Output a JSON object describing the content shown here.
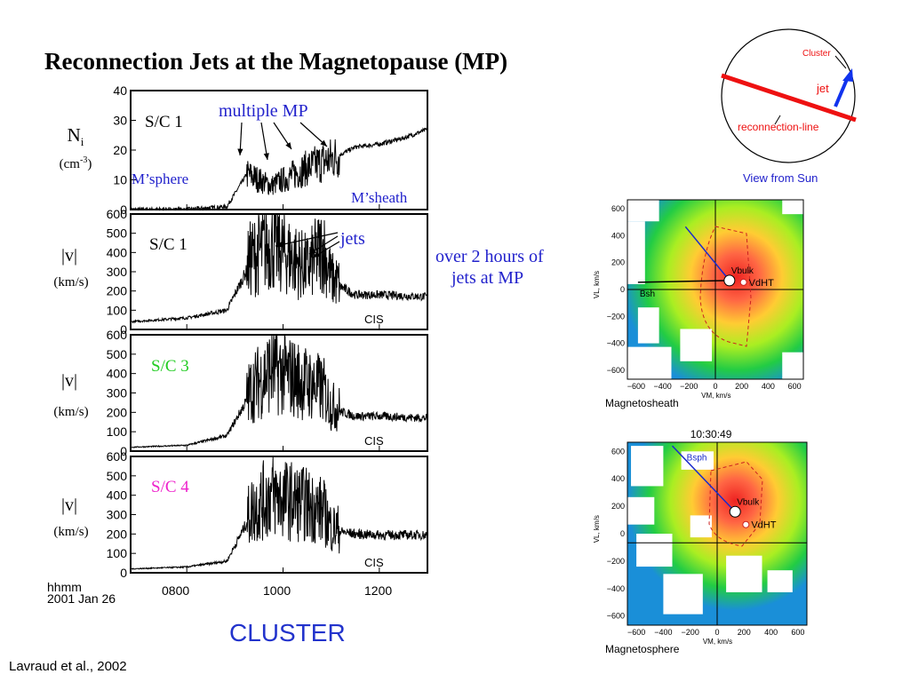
{
  "slide": {
    "title": "Reconnection Jets at the Magnetopause (MP)",
    "mission": "CLUSTER",
    "citation": "Lavraud et al., 2002",
    "jets_note_line1": "over 2 hours of",
    "jets_note_line2": "jets at MP",
    "colors": {
      "annotation_blue": "#2222cc",
      "sc3_green": "#22cc22",
      "sc4_magenta": "#ee22cc",
      "reconnection_red": "#ee1111"
    }
  },
  "timeseries": {
    "time_axis": {
      "ticks": [
        "0800",
        "1000",
        "1200"
      ],
      "left_label": "hhmm",
      "date_label": "2001 Jan 26"
    },
    "panels": [
      {
        "spacecraft": "S/C 1",
        "sc_color": "#000000",
        "quantity": "N",
        "quantity_sub": "i",
        "unit": "(cm-3)",
        "yticks": [
          "0",
          "10",
          "20",
          "30",
          "40"
        ],
        "ylim": [
          0,
          40
        ],
        "annotations": {
          "top": "multiple MP",
          "left": "M’sphere",
          "right": "M’sheath"
        }
      },
      {
        "spacecraft": "S/C 1",
        "sc_color": "#000000",
        "quantity": "|v|",
        "unit": "(km/s)",
        "yticks": [
          "0",
          "100",
          "200",
          "300",
          "400",
          "500",
          "600"
        ],
        "ylim": [
          0,
          600
        ],
        "annotations": {
          "top": "jets",
          "instrument": "CIS"
        }
      },
      {
        "spacecraft": "S/C 3",
        "sc_color": "#22cc22",
        "quantity": "|v|",
        "unit": "(km/s)",
        "yticks": [
          "0",
          "100",
          "200",
          "300",
          "400",
          "500",
          "600"
        ],
        "ylim": [
          0,
          600
        ],
        "annotations": {
          "instrument": "CIS"
        }
      },
      {
        "spacecraft": "S/C 4",
        "sc_color": "#ee22cc",
        "quantity": "|v|",
        "unit": "(km/s)",
        "yticks": [
          "0",
          "100",
          "200",
          "300",
          "400",
          "500",
          "600"
        ],
        "ylim": [
          0,
          600
        ],
        "annotations": {
          "instrument": "CIS"
        }
      }
    ]
  },
  "schematic": {
    "cluster_label": "Cluster",
    "jet_label": "jet",
    "line_label": "reconnection-line",
    "caption": "View from Sun"
  },
  "vdf_plots": [
    {
      "region": "Magnetosheath",
      "time": "",
      "xticks": [
        "−600",
        "−400",
        "−200",
        "0",
        "200",
        "400",
        "600"
      ],
      "yticks": [
        "600",
        "400",
        "200",
        "0",
        "−200",
        "−400",
        "−600"
      ],
      "xlabel": "VM, km/s",
      "ylabel": "VL, km/s",
      "labels": {
        "bulk": "Vbulk",
        "dht": "VdHT",
        "b": "Bsh"
      }
    },
    {
      "region": "Magnetosphere",
      "time": "10:30:49",
      "xticks": [
        "−600",
        "−400",
        "−200",
        "0",
        "200",
        "400",
        "600"
      ],
      "yticks": [
        "600",
        "400",
        "200",
        "0",
        "−200",
        "−400",
        "−600"
      ],
      "xlabel": "VM, km/s",
      "ylabel": "VL, km/s",
      "labels": {
        "bulk": "Vbulk",
        "dht": "VdHT",
        "b": "Bsph"
      }
    }
  ],
  "chart_data": {
    "type": "line",
    "title": "Reconnection Jets at the Magnetopause (MP)",
    "x_axis": {
      "label": "hhmm",
      "ticks": [
        "0800",
        "1000",
        "1200"
      ],
      "range": [
        "0650",
        "1300"
      ]
    },
    "series": [
      {
        "name": "S/C 1",
        "ylabel": "Ni (cm-3)",
        "ylim": [
          0,
          40
        ],
        "x": [
          "0650",
          "0800",
          "0850",
          "0915",
          "0945",
          "1000",
          "1030",
          "1100",
          "1130",
          "1200",
          "1230",
          "1300"
        ],
        "values": [
          0,
          0,
          1,
          12,
          8,
          10,
          14,
          17,
          21,
          22,
          24,
          27
        ]
      },
      {
        "name": "S/C 1",
        "ylabel": "|v| (km/s)",
        "ylim": [
          0,
          600
        ],
        "x": [
          "0650",
          "0800",
          "0850",
          "0920",
          "0945",
          "1000",
          "1030",
          "1050",
          "1100",
          "1130",
          "1200",
          "1230",
          "1300"
        ],
        "values": [
          40,
          60,
          100,
          350,
          420,
          380,
          300,
          400,
          250,
          180,
          180,
          175,
          170
        ]
      },
      {
        "name": "S/C 3",
        "ylabel": "|v| (km/s)",
        "ylim": [
          0,
          600
        ],
        "x": [
          "0650",
          "0800",
          "0850",
          "0920",
          "0945",
          "1000",
          "1030",
          "1050",
          "1100",
          "1130",
          "1200",
          "1230",
          "1300"
        ],
        "values": [
          20,
          30,
          80,
          300,
          400,
          380,
          330,
          300,
          220,
          180,
          180,
          175,
          170
        ]
      },
      {
        "name": "S/C 4",
        "ylabel": "|v| (km/s)",
        "ylim": [
          0,
          600
        ],
        "x": [
          "0650",
          "0800",
          "0850",
          "0920",
          "0945",
          "1000",
          "1030",
          "1050",
          "1100",
          "1130",
          "1200",
          "1230",
          "1300"
        ],
        "values": [
          20,
          30,
          60,
          300,
          380,
          360,
          330,
          300,
          220,
          200,
          195,
          195,
          195
        ]
      }
    ]
  }
}
